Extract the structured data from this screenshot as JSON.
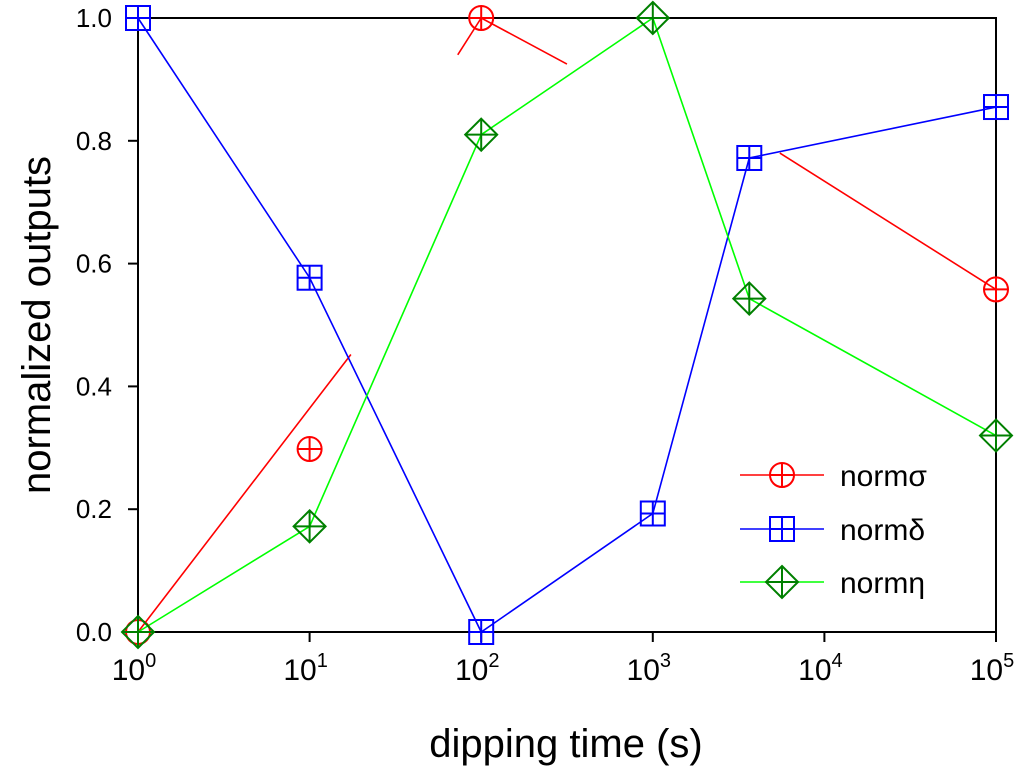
{
  "chart_data": {
    "type": "line",
    "xlabel": "dipping time (s)",
    "ylabel": "normalized outputs",
    "x_scale": "log",
    "xlim": [
      1,
      100000
    ],
    "ylim": [
      0,
      1
    ],
    "x_ticks": [
      {
        "value": 1,
        "base": "10",
        "exp": "0"
      },
      {
        "value": 10,
        "base": "10",
        "exp": "1"
      },
      {
        "value": 100,
        "base": "10",
        "exp": "2"
      },
      {
        "value": 1000,
        "base": "10",
        "exp": "3"
      },
      {
        "value": 10000,
        "base": "10",
        "exp": "4"
      },
      {
        "value": 100000,
        "base": "10",
        "exp": "5"
      }
    ],
    "y_ticks": [
      "0.0",
      "0.2",
      "0.4",
      "0.6",
      "0.8",
      "1.0"
    ],
    "grid": false,
    "legend_position": "bottom-right",
    "series": [
      {
        "name": "normσ",
        "color": "#ff0000",
        "marker_color": "#ff0000",
        "marker": "circle-cross",
        "x": [
          1,
          10,
          100,
          100000
        ],
        "y": [
          0.0,
          0.298,
          1.0,
          0.558
        ],
        "segments": [
          {
            "from": [
              1,
              0.0
            ],
            "to": [
              17.4,
              0.452
            ]
          },
          {
            "from": [
              100,
              1.0
            ],
            "to": [
              316,
              0.925
            ]
          },
          {
            "from": [
              5500,
              0.78
            ],
            "to": [
              100000,
              0.558
            ]
          },
          {
            "from": [
              73,
              0.94
            ],
            "to": [
              100,
              1.0
            ]
          }
        ]
      },
      {
        "name": "normδ",
        "color": "#0000ff",
        "marker_color": "#0000ff",
        "marker": "square-cross",
        "x": [
          1,
          10,
          100,
          1000,
          3650,
          100000
        ],
        "y": [
          1.0,
          0.577,
          0.0,
          0.193,
          0.772,
          0.855
        ]
      },
      {
        "name": "normη",
        "color": "#00ff00",
        "marker_color": "#008000",
        "marker": "diamond-cross",
        "x": [
          1,
          10,
          100,
          1000,
          3650,
          100000
        ],
        "y": [
          0.0,
          0.172,
          0.81,
          1.0,
          0.543,
          0.32
        ]
      }
    ]
  }
}
